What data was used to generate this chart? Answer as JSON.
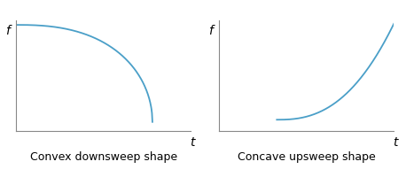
{
  "title_left": "Convex downsweep shape",
  "title_right": "Concave upsweep shape",
  "xlabel": "t",
  "ylabel": "f",
  "curve_color": "#4a9fc8",
  "curve_linewidth": 1.3,
  "background_color": "#ffffff",
  "axis_color": "#888888",
  "label_fontsize": 10,
  "caption_fontsize": 9,
  "convex_power": 2.5,
  "concave_power": 2.5
}
